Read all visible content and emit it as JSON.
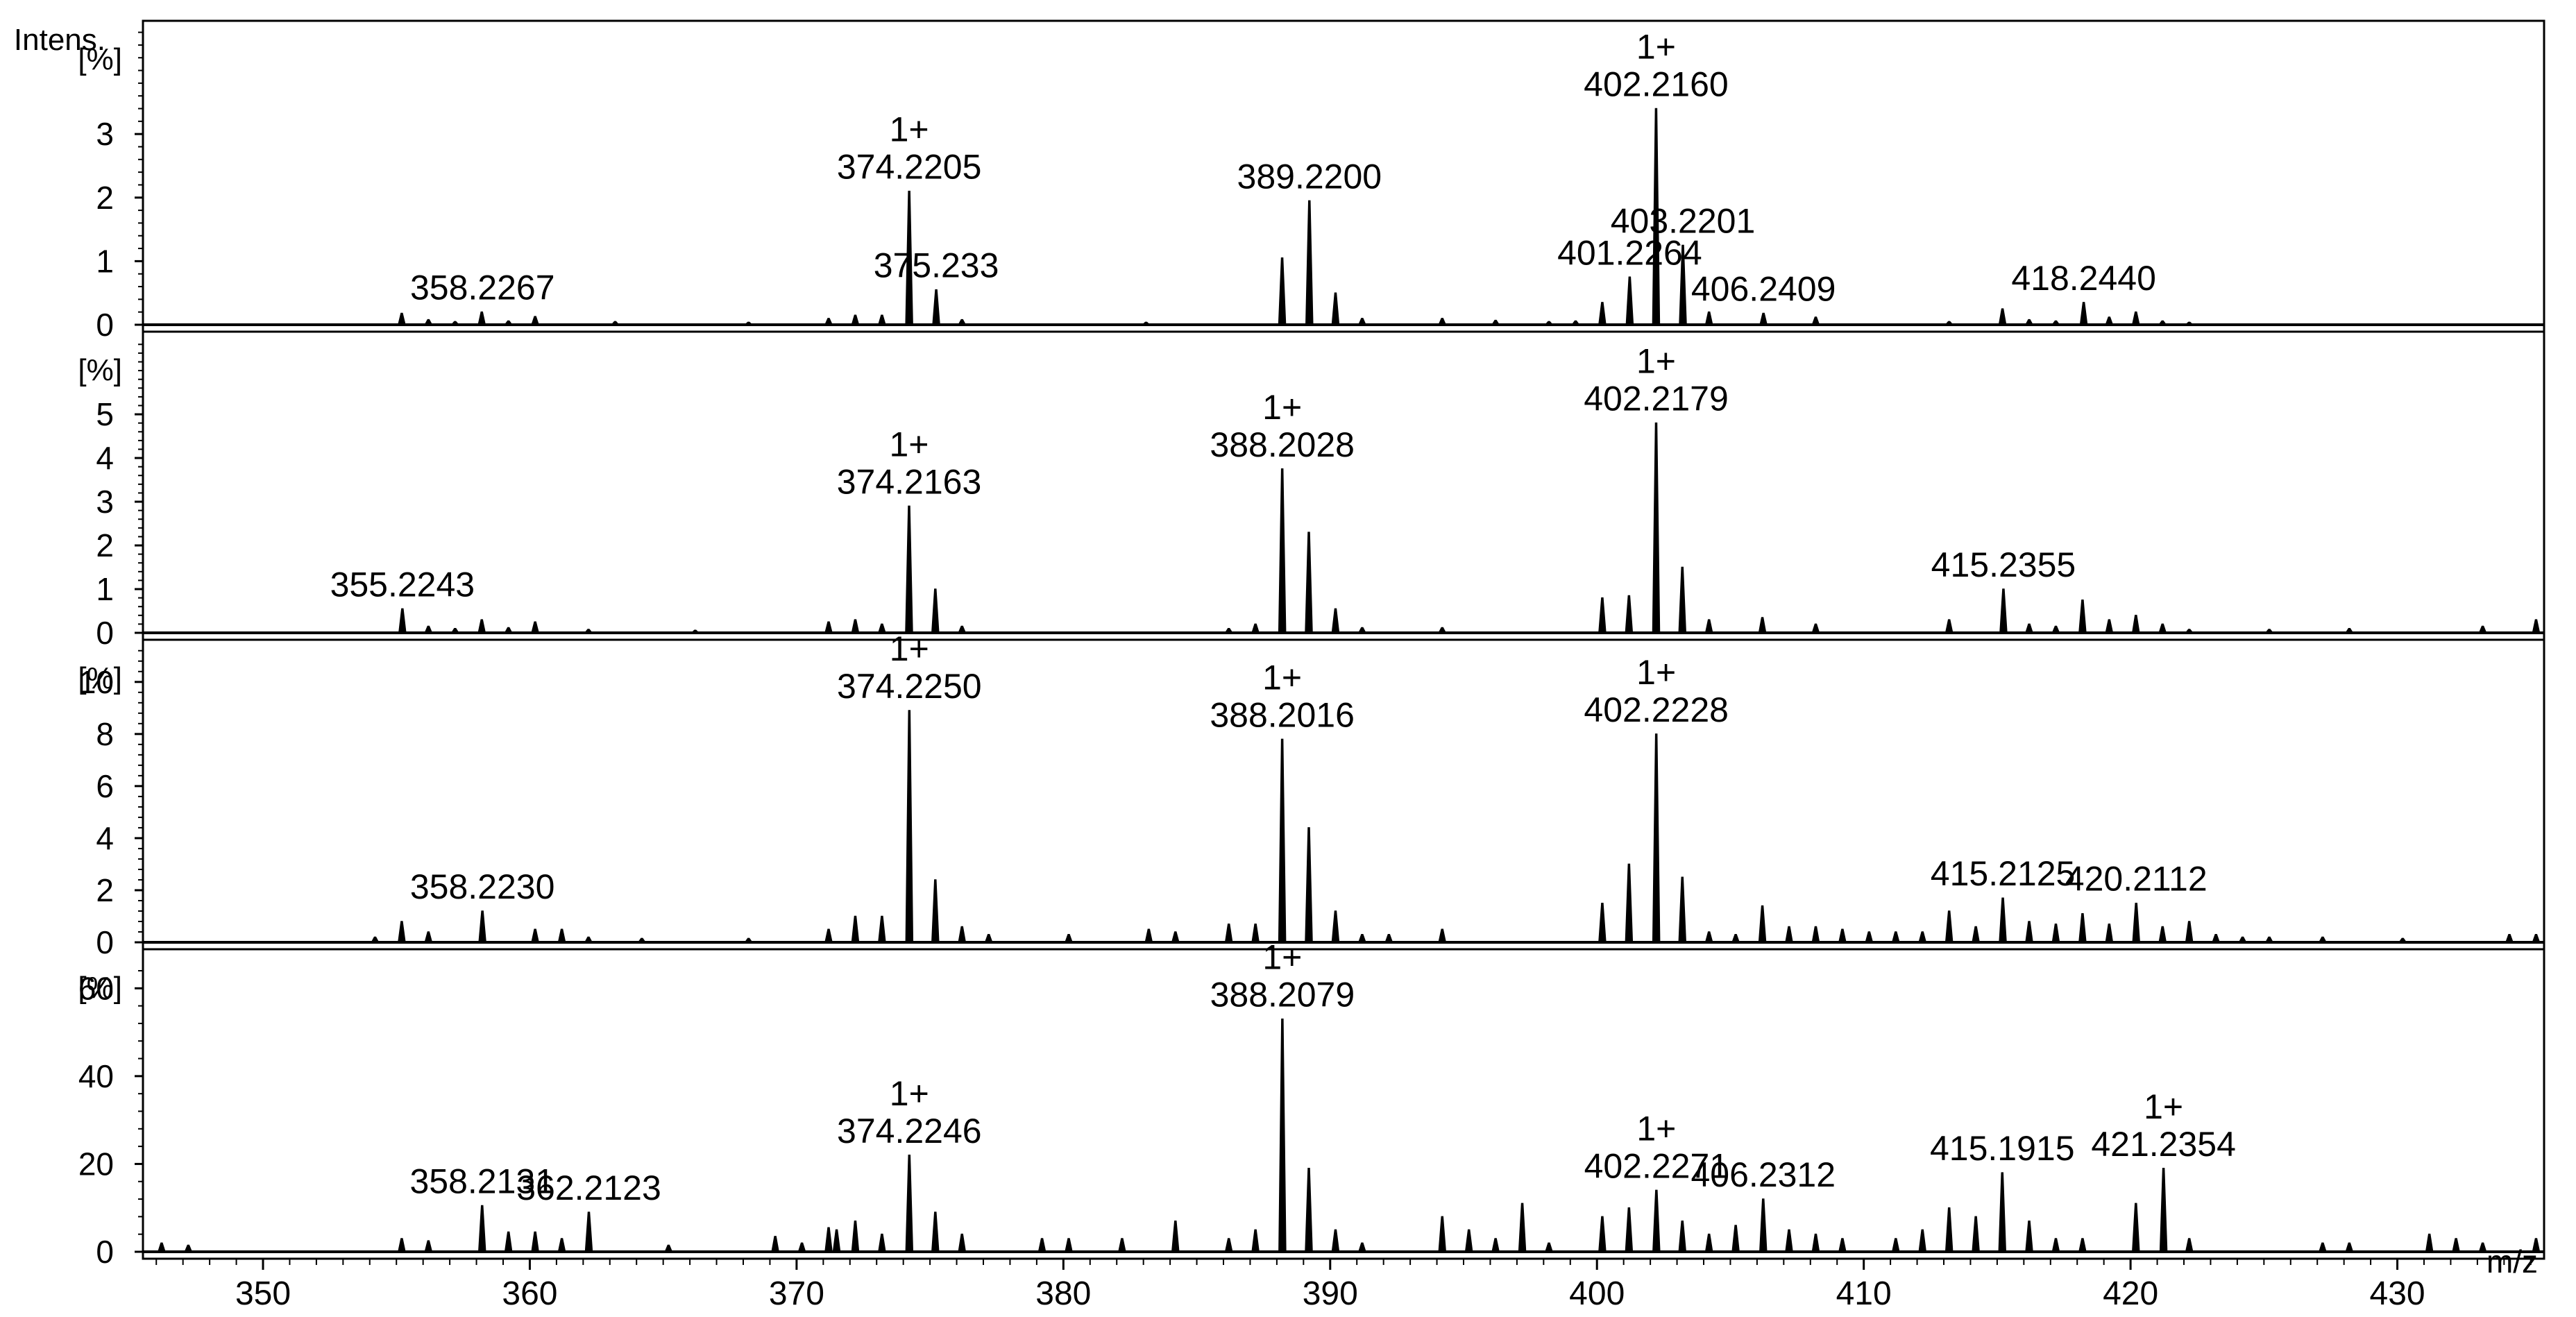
{
  "figure": {
    "intensity_label": "Intens.",
    "unit_label": "[%]",
    "x_axis_label": "m/z"
  },
  "chart_data": {
    "type": "line",
    "x_axis": {
      "label": "m/z",
      "range": [
        345.5,
        435.5
      ],
      "ticks": [
        350,
        360,
        370,
        380,
        390,
        400,
        410,
        420,
        430
      ],
      "tick_labels": [
        "350",
        "360",
        "370",
        "380",
        "390",
        "400",
        "410",
        "420",
        "430"
      ],
      "minor_tick_step": 1
    },
    "panels": [
      {
        "ylabel": "[%]",
        "top_label": "Intens.",
        "ylim": [
          0,
          4.65
        ],
        "y_ticks": [
          0,
          1,
          2,
          3
        ],
        "y_tick_labels": [
          "0",
          "1",
          "2",
          "3"
        ],
        "peaks": [
          [
            355.2,
            0.18
          ],
          [
            356.2,
            0.08
          ],
          [
            357.2,
            0.05
          ],
          [
            358.2,
            0.2
          ],
          [
            359.2,
            0.06
          ],
          [
            360.2,
            0.13
          ],
          [
            363.2,
            0.05
          ],
          [
            368.2,
            0.04
          ],
          [
            371.2,
            0.1
          ],
          [
            372.2,
            0.15
          ],
          [
            373.2,
            0.15
          ],
          [
            374.2205,
            2.1
          ],
          [
            375.233,
            0.55
          ],
          [
            376.2,
            0.08
          ],
          [
            383.1,
            0.04
          ],
          [
            388.2,
            1.05
          ],
          [
            389.22,
            1.95
          ],
          [
            390.2,
            0.5
          ],
          [
            391.2,
            0.1
          ],
          [
            394.2,
            0.1
          ],
          [
            396.2,
            0.07
          ],
          [
            398.2,
            0.05
          ],
          [
            399.2,
            0.06
          ],
          [
            400.2,
            0.35
          ],
          [
            401.2264,
            0.75
          ],
          [
            402.216,
            3.4
          ],
          [
            403.2201,
            1.25
          ],
          [
            404.2,
            0.2
          ],
          [
            406.2409,
            0.18
          ],
          [
            408.2,
            0.12
          ],
          [
            413.2,
            0.05
          ],
          [
            415.2,
            0.25
          ],
          [
            416.2,
            0.08
          ],
          [
            417.2,
            0.06
          ],
          [
            418.244,
            0.35
          ],
          [
            419.2,
            0.12
          ],
          [
            420.2,
            0.2
          ],
          [
            421.2,
            0.06
          ],
          [
            422.2,
            0.04
          ]
        ],
        "annotations": [
          {
            "mz": 358.2267,
            "charge": "",
            "label": "358.2267"
          },
          {
            "mz": 374.2205,
            "charge": "1+",
            "label": "374.2205"
          },
          {
            "mz": 375.233,
            "charge": "",
            "label": "375.233"
          },
          {
            "mz": 389.22,
            "charge": "",
            "label": "389.2200"
          },
          {
            "mz": 401.2264,
            "charge": "",
            "label": "401.2264"
          },
          {
            "mz": 402.216,
            "charge": "1+",
            "label": "402.2160"
          },
          {
            "mz": 403.2201,
            "charge": "",
            "label": "403.2201"
          },
          {
            "mz": 406.2409,
            "charge": "",
            "label": "406.2409"
          },
          {
            "mz": 418.244,
            "charge": "",
            "label": "418.2440"
          }
        ]
      },
      {
        "ylabel": "[%]",
        "ylim": [
          0,
          6.7
        ],
        "y_ticks": [
          0,
          1,
          2,
          3,
          4,
          5
        ],
        "y_tick_labels": [
          "0",
          "1",
          "2",
          "3",
          "4",
          "5"
        ],
        "peaks": [
          [
            355.2243,
            0.55
          ],
          [
            356.2,
            0.15
          ],
          [
            357.2,
            0.1
          ],
          [
            358.2,
            0.3
          ],
          [
            359.2,
            0.12
          ],
          [
            360.2,
            0.25
          ],
          [
            362.2,
            0.08
          ],
          [
            366.2,
            0.06
          ],
          [
            371.2,
            0.25
          ],
          [
            372.2,
            0.3
          ],
          [
            373.2,
            0.2
          ],
          [
            374.2163,
            2.9
          ],
          [
            375.2,
            1.0
          ],
          [
            376.2,
            0.15
          ],
          [
            386.2,
            0.1
          ],
          [
            387.2,
            0.2
          ],
          [
            388.2028,
            3.75
          ],
          [
            389.2,
            2.3
          ],
          [
            390.2,
            0.55
          ],
          [
            391.2,
            0.12
          ],
          [
            394.2,
            0.12
          ],
          [
            400.2,
            0.8
          ],
          [
            401.2,
            0.85
          ],
          [
            402.2179,
            4.8
          ],
          [
            403.2,
            1.5
          ],
          [
            404.2,
            0.3
          ],
          [
            406.2,
            0.35
          ],
          [
            408.2,
            0.2
          ],
          [
            413.2,
            0.3
          ],
          [
            415.2355,
            1.0
          ],
          [
            416.2,
            0.2
          ],
          [
            417.2,
            0.15
          ],
          [
            418.2,
            0.75
          ],
          [
            419.2,
            0.3
          ],
          [
            420.2,
            0.4
          ],
          [
            421.2,
            0.2
          ],
          [
            422.2,
            0.08
          ],
          [
            425.2,
            0.08
          ],
          [
            428.2,
            0.1
          ],
          [
            433.2,
            0.15
          ],
          [
            435.2,
            0.3
          ]
        ],
        "annotations": [
          {
            "mz": 355.2243,
            "charge": "",
            "label": "355.2243"
          },
          {
            "mz": 374.2163,
            "charge": "1+",
            "label": "374.2163"
          },
          {
            "mz": 388.2028,
            "charge": "1+",
            "label": "388.2028"
          },
          {
            "mz": 402.2179,
            "charge": "1+",
            "label": "402.2179"
          },
          {
            "mz": 415.2355,
            "charge": "",
            "label": "415.2355"
          }
        ]
      },
      {
        "ylabel": "[%]",
        "ylim": [
          0,
          11.3
        ],
        "y_ticks": [
          0,
          2,
          4,
          6,
          8,
          10
        ],
        "y_tick_labels": [
          "0",
          "2",
          "4",
          "6",
          "8",
          "10"
        ],
        "peaks": [
          [
            354.2,
            0.2
          ],
          [
            355.2,
            0.8
          ],
          [
            356.2,
            0.4
          ],
          [
            358.223,
            1.2
          ],
          [
            360.2,
            0.5
          ],
          [
            361.2,
            0.5
          ],
          [
            362.2,
            0.2
          ],
          [
            364.2,
            0.15
          ],
          [
            368.2,
            0.15
          ],
          [
            371.2,
            0.5
          ],
          [
            372.2,
            1.0
          ],
          [
            373.2,
            1.0
          ],
          [
            374.225,
            8.9
          ],
          [
            375.2,
            2.4
          ],
          [
            376.2,
            0.6
          ],
          [
            377.2,
            0.3
          ],
          [
            380.2,
            0.3
          ],
          [
            383.2,
            0.5
          ],
          [
            384.2,
            0.4
          ],
          [
            386.2,
            0.7
          ],
          [
            387.2,
            0.7
          ],
          [
            388.2016,
            7.8
          ],
          [
            389.2,
            4.4
          ],
          [
            390.2,
            1.2
          ],
          [
            391.2,
            0.3
          ],
          [
            392.2,
            0.3
          ],
          [
            394.2,
            0.5
          ],
          [
            400.2,
            1.5
          ],
          [
            401.2,
            3.0
          ],
          [
            402.2228,
            8.0
          ],
          [
            403.2,
            2.5
          ],
          [
            404.2,
            0.4
          ],
          [
            405.2,
            0.3
          ],
          [
            406.2,
            1.4
          ],
          [
            407.2,
            0.6
          ],
          [
            408.2,
            0.6
          ],
          [
            409.2,
            0.5
          ],
          [
            410.2,
            0.4
          ],
          [
            411.2,
            0.4
          ],
          [
            412.2,
            0.4
          ],
          [
            413.2,
            1.2
          ],
          [
            414.2,
            0.6
          ],
          [
            415.2125,
            1.7
          ],
          [
            416.2,
            0.8
          ],
          [
            417.2,
            0.7
          ],
          [
            418.2,
            1.1
          ],
          [
            419.2,
            0.7
          ],
          [
            420.2112,
            1.5
          ],
          [
            421.2,
            0.6
          ],
          [
            422.2,
            0.8
          ],
          [
            423.2,
            0.3
          ],
          [
            424.2,
            0.2
          ],
          [
            425.2,
            0.2
          ],
          [
            427.2,
            0.2
          ],
          [
            430.2,
            0.15
          ],
          [
            434.2,
            0.3
          ],
          [
            435.2,
            0.3
          ]
        ],
        "annotations": [
          {
            "mz": 358.223,
            "charge": "",
            "label": "358.2230"
          },
          {
            "mz": 374.225,
            "charge": "1+",
            "label": "374.2250"
          },
          {
            "mz": 388.2016,
            "charge": "1+",
            "label": "388.2016"
          },
          {
            "mz": 402.2228,
            "charge": "1+",
            "label": "402.2228"
          },
          {
            "mz": 415.2125,
            "charge": "",
            "label": "415.2125"
          },
          {
            "mz": 420.2112,
            "charge": "",
            "label": "420.2112"
          }
        ]
      },
      {
        "ylabel": "[%]",
        "ylim": [
          0,
          67
        ],
        "y_ticks": [
          0,
          20,
          40,
          60
        ],
        "y_tick_labels": [
          "0",
          "20",
          "40",
          "60"
        ],
        "peaks": [
          [
            346.2,
            2
          ],
          [
            347.2,
            1.5
          ],
          [
            355.2,
            3
          ],
          [
            356.2,
            2.5
          ],
          [
            358.2131,
            10.5
          ],
          [
            359.2,
            4.5
          ],
          [
            360.2,
            4.5
          ],
          [
            361.2,
            3
          ],
          [
            362.2123,
            9
          ],
          [
            365.2,
            1.5
          ],
          [
            369.2,
            3.5
          ],
          [
            370.2,
            2
          ],
          [
            371.2,
            5.5
          ],
          [
            371.5,
            5
          ],
          [
            372.2,
            7
          ],
          [
            373.2,
            4
          ],
          [
            374.2246,
            22
          ],
          [
            375.2,
            9
          ],
          [
            376.2,
            4
          ],
          [
            379.2,
            3
          ],
          [
            380.2,
            3
          ],
          [
            382.2,
            3
          ],
          [
            384.2,
            7
          ],
          [
            386.2,
            3
          ],
          [
            387.2,
            5
          ],
          [
            388.2079,
            53
          ],
          [
            389.2,
            19
          ],
          [
            390.2,
            5
          ],
          [
            391.2,
            2
          ],
          [
            394.2,
            8
          ],
          [
            395.2,
            5
          ],
          [
            396.2,
            3
          ],
          [
            397.2,
            11
          ],
          [
            398.2,
            2
          ],
          [
            400.2,
            8
          ],
          [
            401.2,
            10
          ],
          [
            402.2271,
            14
          ],
          [
            403.2,
            7
          ],
          [
            404.2,
            4
          ],
          [
            405.2,
            6
          ],
          [
            406.2312,
            12
          ],
          [
            407.2,
            5
          ],
          [
            408.2,
            4
          ],
          [
            409.2,
            3
          ],
          [
            411.2,
            3
          ],
          [
            412.2,
            5
          ],
          [
            413.2,
            10
          ],
          [
            414.2,
            8
          ],
          [
            415.1915,
            18
          ],
          [
            416.2,
            7
          ],
          [
            417.2,
            3
          ],
          [
            418.2,
            3
          ],
          [
            420.2,
            11
          ],
          [
            421.2354,
            19
          ],
          [
            422.2,
            3
          ],
          [
            427.2,
            2
          ],
          [
            428.2,
            2
          ],
          [
            431.2,
            4
          ],
          [
            432.2,
            3
          ],
          [
            433.2,
            2
          ],
          [
            435.2,
            3
          ]
        ],
        "annotations": [
          {
            "mz": 358.2131,
            "charge": "",
            "label": "358.2131"
          },
          {
            "mz": 362.2123,
            "charge": "",
            "label": "362.2123"
          },
          {
            "mz": 374.2246,
            "charge": "1+",
            "label": "374.2246"
          },
          {
            "mz": 388.2079,
            "charge": "1+",
            "label": "388.2079"
          },
          {
            "mz": 402.2271,
            "charge": "1+",
            "label": "402.2271"
          },
          {
            "mz": 406.2312,
            "charge": "",
            "label": "406.2312"
          },
          {
            "mz": 415.1915,
            "charge": "",
            "label": "415.1915"
          },
          {
            "mz": 421.2354,
            "charge": "1+",
            "label": "421.2354"
          }
        ]
      }
    ]
  }
}
